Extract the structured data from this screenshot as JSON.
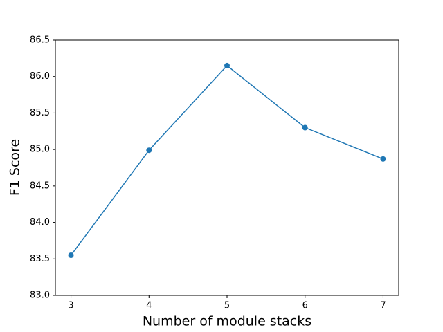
{
  "chart_data": {
    "type": "line",
    "xlabel": "Number of module stacks",
    "ylabel": "F1 Score",
    "x": [
      3,
      4,
      5,
      6,
      7
    ],
    "series": [
      {
        "color": "#1f77b4",
        "values": [
          83.55,
          84.99,
          86.15,
          85.3,
          84.87
        ]
      }
    ],
    "xlim": [
      2.8,
      7.2
    ],
    "xticks": [
      3,
      4,
      5,
      6,
      7
    ],
    "ylim": [
      83,
      86.5
    ],
    "yticks": [
      {
        "value": 83,
        "label": "83.0"
      },
      83.5,
      {
        "value": 84,
        "label": "84.0"
      },
      84.5,
      {
        "value": 85,
        "label": "85.0"
      },
      85.5,
      {
        "value": 86,
        "label": "86.0"
      },
      86.5
    ],
    "grid": false
  }
}
